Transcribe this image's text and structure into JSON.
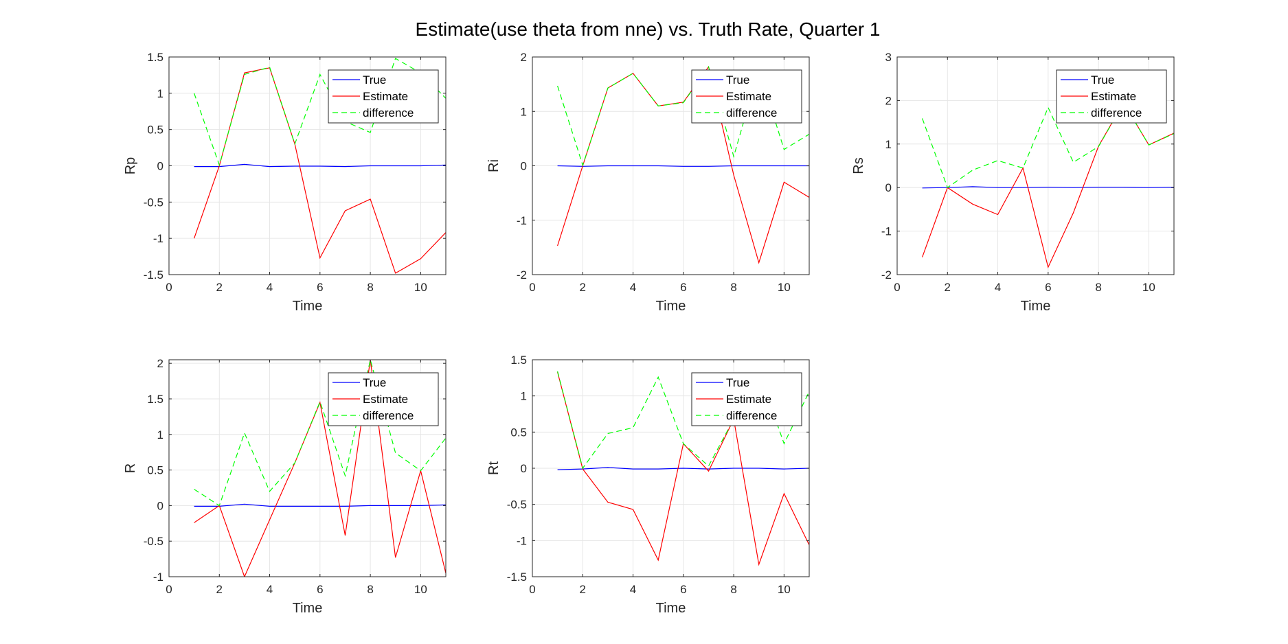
{
  "figure": {
    "title": "Estimate(use theta from nne) vs. Truth Rate, Quarter 1"
  },
  "chart_data": [
    {
      "type": "line",
      "xlabel": "Time",
      "ylabel": "Rp",
      "xlim": [
        0,
        11
      ],
      "ylim": [
        -1.5,
        1.5
      ],
      "xticks": [
        0,
        2,
        4,
        6,
        8,
        10
      ],
      "xtick_labels": [
        "0",
        "2",
        "4",
        "6",
        "8",
        "10"
      ],
      "yticks": [
        -1.5,
        -1,
        -0.5,
        0,
        0.5,
        1,
        1.5
      ],
      "ytick_labels": [
        "-1.5",
        "-1",
        "-0.5",
        "0",
        "0.5",
        "1",
        "1.5"
      ],
      "grid": true,
      "legend_position": "top-right",
      "x": [
        1,
        2,
        3,
        4,
        5,
        6,
        7,
        8,
        9,
        10,
        11
      ],
      "series": [
        {
          "name": "True",
          "color": "#0000ff",
          "style": "solid",
          "values": [
            -0.01,
            -0.01,
            0.02,
            -0.01,
            -0.005,
            -0.005,
            -0.01,
            0.0,
            0.0,
            0.0,
            0.01
          ]
        },
        {
          "name": "Estimate",
          "color": "#ff0000",
          "style": "solid",
          "values": [
            -1.0,
            0.0,
            1.28,
            1.35,
            0.3,
            -1.27,
            -0.62,
            -0.46,
            -1.48,
            -1.28,
            -0.92
          ]
        },
        {
          "name": "difference",
          "color": "#00ff00",
          "style": "dashed",
          "values": [
            1.0,
            0.01,
            1.26,
            1.36,
            0.3,
            1.26,
            0.61,
            0.46,
            1.48,
            1.28,
            0.93
          ]
        }
      ]
    },
    {
      "type": "line",
      "xlabel": "Time",
      "ylabel": "Ri",
      "xlim": [
        0,
        11
      ],
      "ylim": [
        -2,
        2
      ],
      "xticks": [
        0,
        2,
        4,
        6,
        8,
        10
      ],
      "xtick_labels": [
        "0",
        "2",
        "4",
        "6",
        "8",
        "10"
      ],
      "yticks": [
        -2,
        -1,
        0,
        1,
        2
      ],
      "ytick_labels": [
        "-2",
        "-1",
        "0",
        "1",
        "2"
      ],
      "grid": true,
      "legend_position": "top-right",
      "x": [
        1,
        2,
        3,
        4,
        5,
        6,
        7,
        8,
        9,
        10,
        11
      ],
      "series": [
        {
          "name": "True",
          "color": "#0000ff",
          "style": "solid",
          "values": [
            0.0,
            -0.01,
            0.0,
            0.0,
            0.0,
            -0.01,
            -0.01,
            0.0,
            0.0,
            0.0,
            0.0
          ]
        },
        {
          "name": "Estimate",
          "color": "#ff0000",
          "style": "solid",
          "values": [
            -1.47,
            0.0,
            1.43,
            1.7,
            1.1,
            1.17,
            1.82,
            -0.17,
            -1.78,
            -0.3,
            -0.58
          ]
        },
        {
          "name": "difference",
          "color": "#00ff00",
          "style": "dashed",
          "values": [
            1.47,
            0.01,
            1.43,
            1.7,
            1.1,
            1.16,
            1.82,
            0.17,
            1.78,
            0.3,
            0.58
          ]
        }
      ]
    },
    {
      "type": "line",
      "xlabel": "Time",
      "ylabel": "Rs",
      "xlim": [
        0,
        11
      ],
      "ylim": [
        -2,
        3
      ],
      "xticks": [
        0,
        2,
        4,
        6,
        8,
        10
      ],
      "xtick_labels": [
        "0",
        "2",
        "4",
        "6",
        "8",
        "10"
      ],
      "yticks": [
        -2,
        -1,
        0,
        1,
        2,
        3
      ],
      "ytick_labels": [
        "-2",
        "-1",
        "0",
        "1",
        "2",
        "3"
      ],
      "grid": true,
      "legend_position": "top-right",
      "x": [
        1,
        2,
        3,
        4,
        5,
        6,
        7,
        8,
        9,
        10,
        11
      ],
      "series": [
        {
          "name": "True",
          "color": "#0000ff",
          "style": "solid",
          "values": [
            -0.01,
            0.0,
            0.02,
            0.0,
            0.0,
            0.01,
            0.0,
            0.01,
            0.01,
            0.0,
            0.01
          ]
        },
        {
          "name": "Estimate",
          "color": "#ff0000",
          "style": "solid",
          "values": [
            -1.6,
            0.0,
            -0.38,
            -0.62,
            0.45,
            -1.83,
            -0.58,
            0.95,
            1.95,
            0.98,
            1.25
          ]
        },
        {
          "name": "difference",
          "color": "#00ff00",
          "style": "dashed",
          "values": [
            1.59,
            0.0,
            0.4,
            0.62,
            0.45,
            1.84,
            0.58,
            0.94,
            1.94,
            0.98,
            1.24
          ]
        }
      ]
    },
    {
      "type": "line",
      "xlabel": "Time",
      "ylabel": "R",
      "xlim": [
        0,
        11
      ],
      "ylim": [
        -1,
        2.05
      ],
      "xticks": [
        0,
        2,
        4,
        6,
        8,
        10
      ],
      "xtick_labels": [
        "0",
        "2",
        "4",
        "6",
        "8",
        "10"
      ],
      "yticks": [
        -1,
        -0.5,
        0,
        0.5,
        1,
        1.5,
        2
      ],
      "ytick_labels": [
        "-1",
        "-0.5",
        "0",
        "0.5",
        "1",
        "1.5",
        "2"
      ],
      "grid": true,
      "legend_position": "top-right",
      "x": [
        1,
        2,
        3,
        4,
        5,
        6,
        7,
        8,
        9,
        10,
        11
      ],
      "series": [
        {
          "name": "True",
          "color": "#0000ff",
          "style": "solid",
          "values": [
            -0.01,
            -0.01,
            0.02,
            -0.01,
            -0.01,
            -0.01,
            -0.01,
            0.0,
            0.0,
            0.0,
            0.01
          ]
        },
        {
          "name": "Estimate",
          "color": "#ff0000",
          "style": "solid",
          "values": [
            -0.24,
            0.0,
            -1.0,
            -0.2,
            0.6,
            1.45,
            -0.42,
            2.05,
            -0.73,
            0.49,
            -0.95
          ]
        },
        {
          "name": "difference",
          "color": "#00ff00",
          "style": "dashed",
          "values": [
            0.23,
            0.0,
            1.02,
            0.2,
            0.6,
            1.46,
            0.42,
            2.05,
            0.74,
            0.49,
            0.95
          ]
        }
      ]
    },
    {
      "type": "line",
      "xlabel": "Time",
      "ylabel": "Rt",
      "xlim": [
        0,
        11
      ],
      "ylim": [
        -1.5,
        1.5
      ],
      "xticks": [
        0,
        2,
        4,
        6,
        8,
        10
      ],
      "xtick_labels": [
        "0",
        "2",
        "4",
        "6",
        "8",
        "10"
      ],
      "yticks": [
        -1.5,
        -1,
        -0.5,
        0,
        0.5,
        1,
        1.5
      ],
      "ytick_labels": [
        "-1.5",
        "-1",
        "-0.5",
        "0",
        "0.5",
        "1",
        "1.5"
      ],
      "grid": true,
      "legend_position": "top-right",
      "x": [
        1,
        2,
        3,
        4,
        5,
        6,
        7,
        8,
        9,
        10,
        11
      ],
      "series": [
        {
          "name": "True",
          "color": "#0000ff",
          "style": "solid",
          "values": [
            -0.02,
            -0.01,
            0.01,
            -0.01,
            -0.01,
            0.0,
            -0.01,
            0.0,
            0.0,
            -0.01,
            0.0
          ]
        },
        {
          "name": "Estimate",
          "color": "#ff0000",
          "style": "solid",
          "values": [
            1.33,
            -0.01,
            -0.47,
            -0.57,
            -1.27,
            0.34,
            -0.04,
            0.68,
            -1.33,
            -0.35,
            -1.06
          ]
        },
        {
          "name": "difference",
          "color": "#00ff00",
          "style": "dashed",
          "values": [
            1.34,
            0.0,
            0.48,
            0.56,
            1.26,
            0.34,
            0.03,
            0.68,
            1.33,
            0.34,
            1.06
          ]
        }
      ]
    }
  ]
}
